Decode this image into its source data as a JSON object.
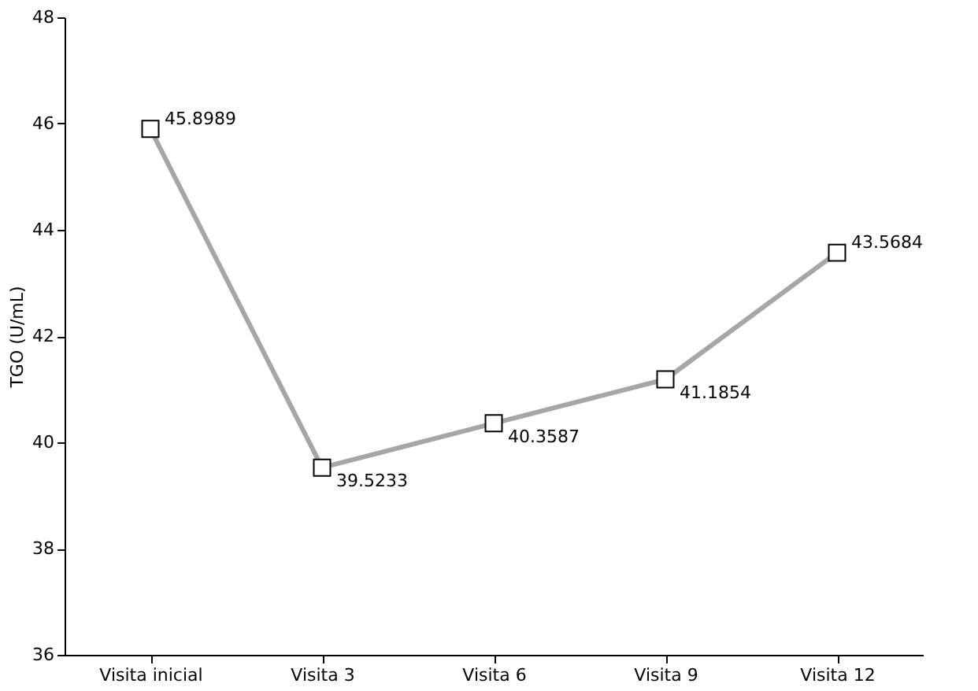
{
  "chart_data": {
    "type": "line",
    "categories": [
      "Visita inicial",
      "Visita 3",
      "Visita 6",
      "Visita 9",
      "Visita 12"
    ],
    "series": [
      {
        "color": "#a6a6a6",
        "values": [
          45.8989,
          39.5233,
          40.3587,
          41.1854,
          43.5684
        ]
      }
    ],
    "ylabel": "TGO (U/mL)",
    "ylim": [
      36,
      48
    ],
    "yticks": [
      36,
      38,
      40,
      42,
      44,
      46,
      48
    ],
    "grid": false,
    "marker": "square",
    "line_style": "solid",
    "data_labels": true
  }
}
